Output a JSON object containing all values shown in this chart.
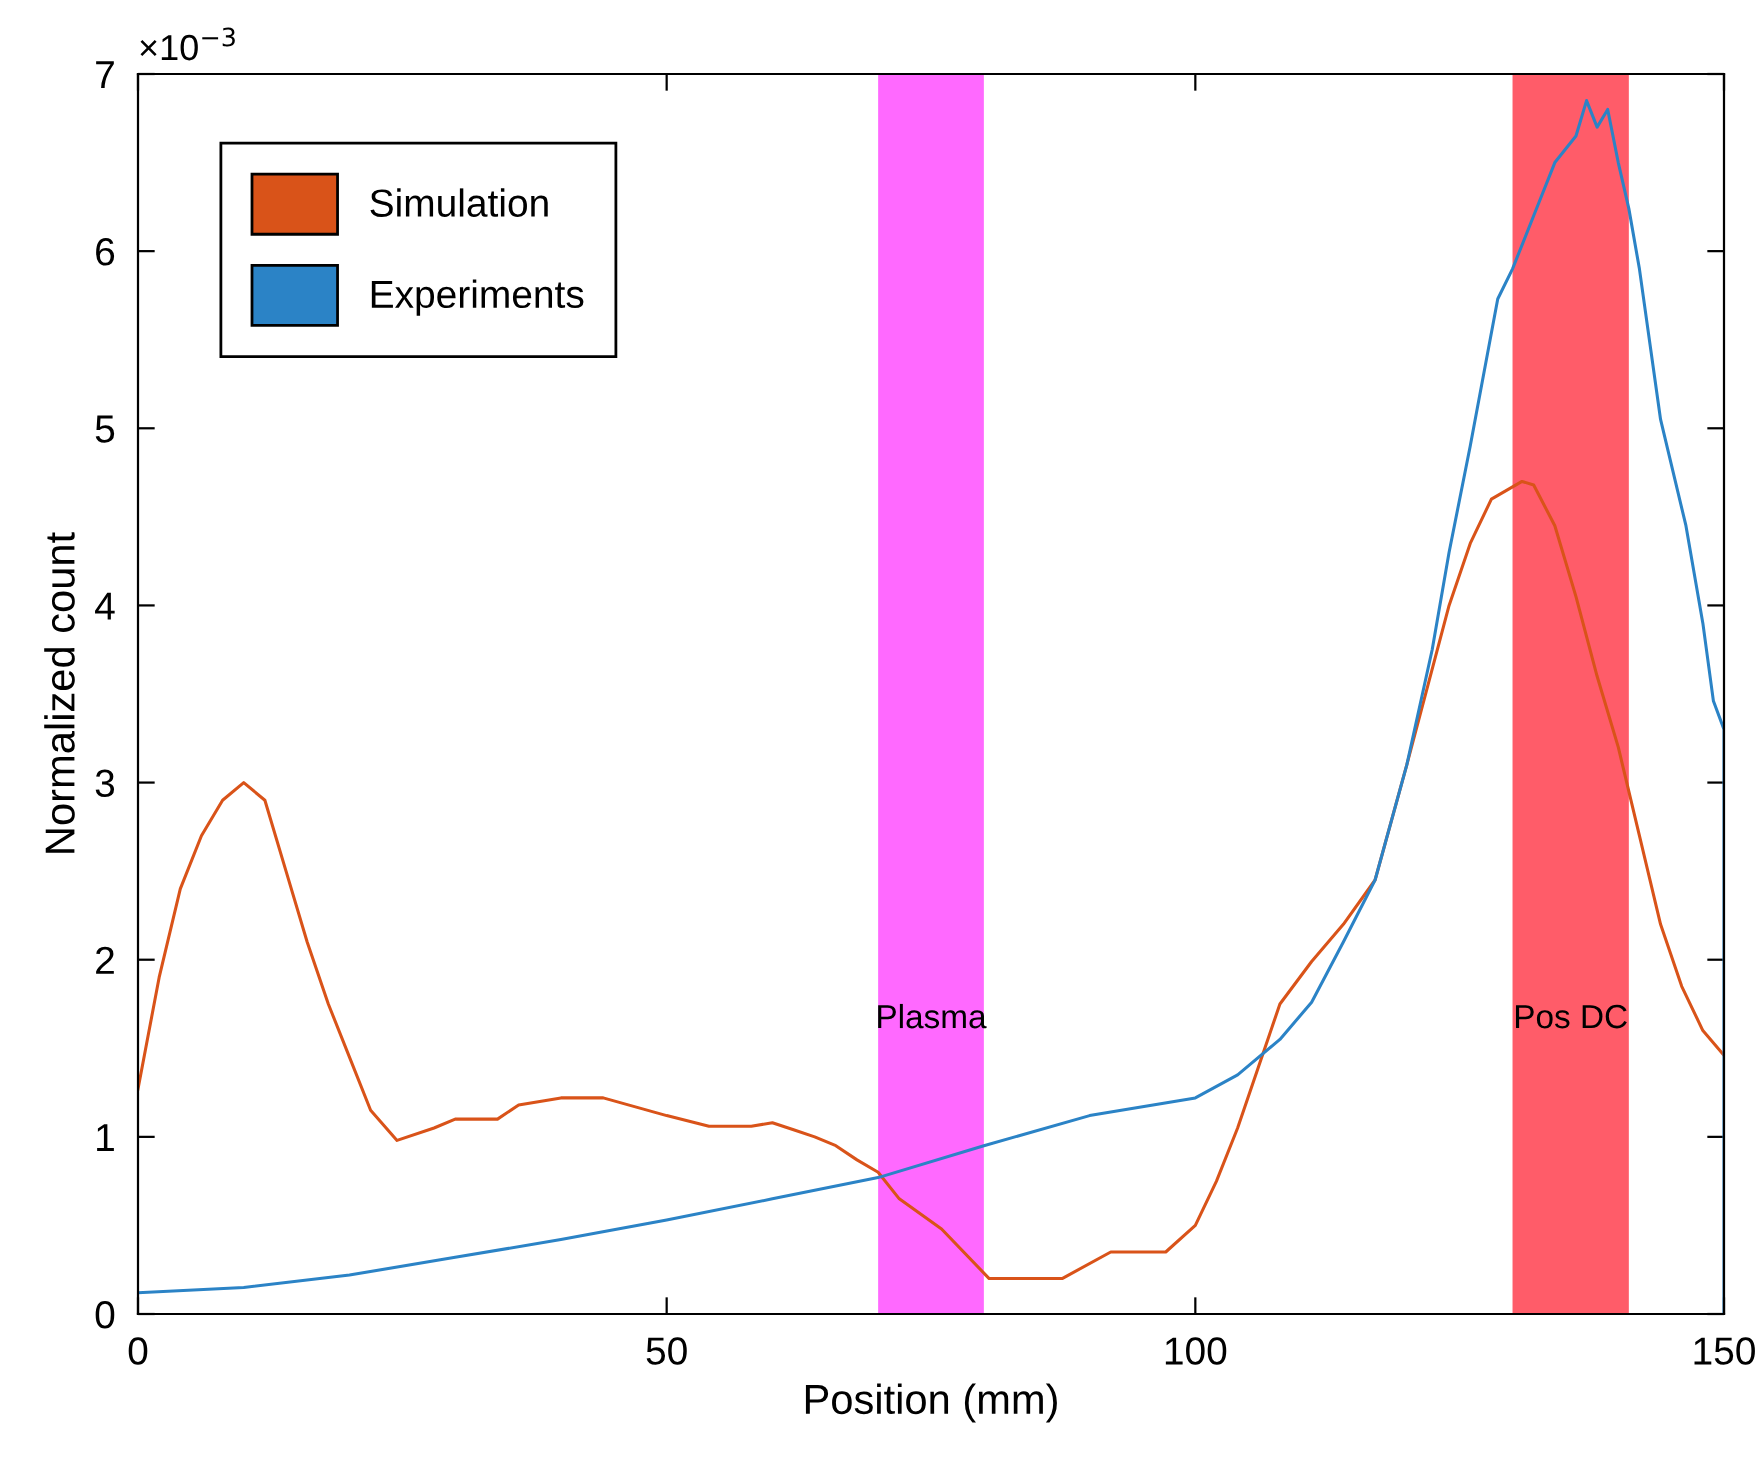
{
  "chart_data": {
    "type": "line",
    "xlabel": "Position (mm)",
    "ylabel": "Normalized count",
    "annotations": [
      "×10$^{−3}$"
    ],
    "xlim": [
      0,
      150
    ],
    "xticks": [
      0,
      50,
      100,
      150
    ],
    "ylim": [
      0,
      7
    ],
    "yticks": [
      0,
      1,
      2,
      3,
      4,
      5,
      6,
      7
    ],
    "grid": false,
    "legend": "top left",
    "series": [
      {
        "name": "Simulation",
        "color": "#d95319",
        "x": [
          0,
          2,
          4,
          6,
          8,
          10,
          12,
          14,
          16,
          18,
          20,
          22,
          24.5,
          28,
          30,
          34,
          36,
          40,
          44,
          50,
          54,
          58,
          60,
          62,
          64,
          66,
          68,
          70,
          72,
          76,
          80.5,
          87.4,
          92,
          97.2,
          100,
          102,
          104,
          106,
          108,
          111,
          114,
          117,
          120,
          122,
          124,
          126,
          128,
          130.9,
          132,
          134,
          136,
          138,
          140,
          142,
          144,
          146,
          148,
          150
        ],
        "values": [
          1.27,
          1.9,
          2.4,
          2.7,
          2.9,
          3.0,
          2.9,
          2.5,
          2.1,
          1.75,
          1.45,
          1.15,
          0.98,
          1.05,
          1.1,
          1.1,
          1.18,
          1.22,
          1.22,
          1.12,
          1.06,
          1.06,
          1.08,
          1.04,
          1.0,
          0.95,
          0.87,
          0.8,
          0.65,
          0.48,
          0.2,
          0.2,
          0.35,
          0.35,
          0.5,
          0.75,
          1.05,
          1.4,
          1.75,
          1.99,
          2.2,
          2.45,
          3.1,
          3.55,
          4.0,
          4.35,
          4.6,
          4.7,
          4.68,
          4.45,
          4.05,
          3.6,
          3.2,
          2.7,
          2.2,
          1.85,
          1.6,
          1.46
        ]
      },
      {
        "name": "Experiments",
        "color": "#2b83c6",
        "x": [
          0,
          10,
          20,
          30,
          40,
          50,
          60,
          70,
          80,
          90,
          100,
          104,
          108,
          111,
          114,
          117,
          120,
          122.4,
          124,
          126,
          128.6,
          130,
          132,
          134,
          136,
          137,
          138,
          139,
          140,
          141,
          142,
          144,
          146.4,
          148,
          149,
          150,
          150
        ],
        "values": [
          0.12,
          0.15,
          0.22,
          0.32,
          0.42,
          0.53,
          0.65,
          0.77,
          0.95,
          1.12,
          1.22,
          1.35,
          1.55,
          1.76,
          2.1,
          2.45,
          3.1,
          3.75,
          4.3,
          4.9,
          5.73,
          5.9,
          6.2,
          6.5,
          6.65,
          6.85,
          6.7,
          6.8,
          6.5,
          6.24,
          5.9,
          5.05,
          4.45,
          3.9,
          3.46,
          3.3,
          0
        ]
      }
    ],
    "bands": [
      {
        "axis": "x",
        "from": 70,
        "to": 80,
        "label": "Plasma",
        "color": "#ff44ff"
      },
      {
        "axis": "x",
        "from": 130,
        "to": 141,
        "label": "Pos DC",
        "color": "#ff3344"
      }
    ]
  }
}
